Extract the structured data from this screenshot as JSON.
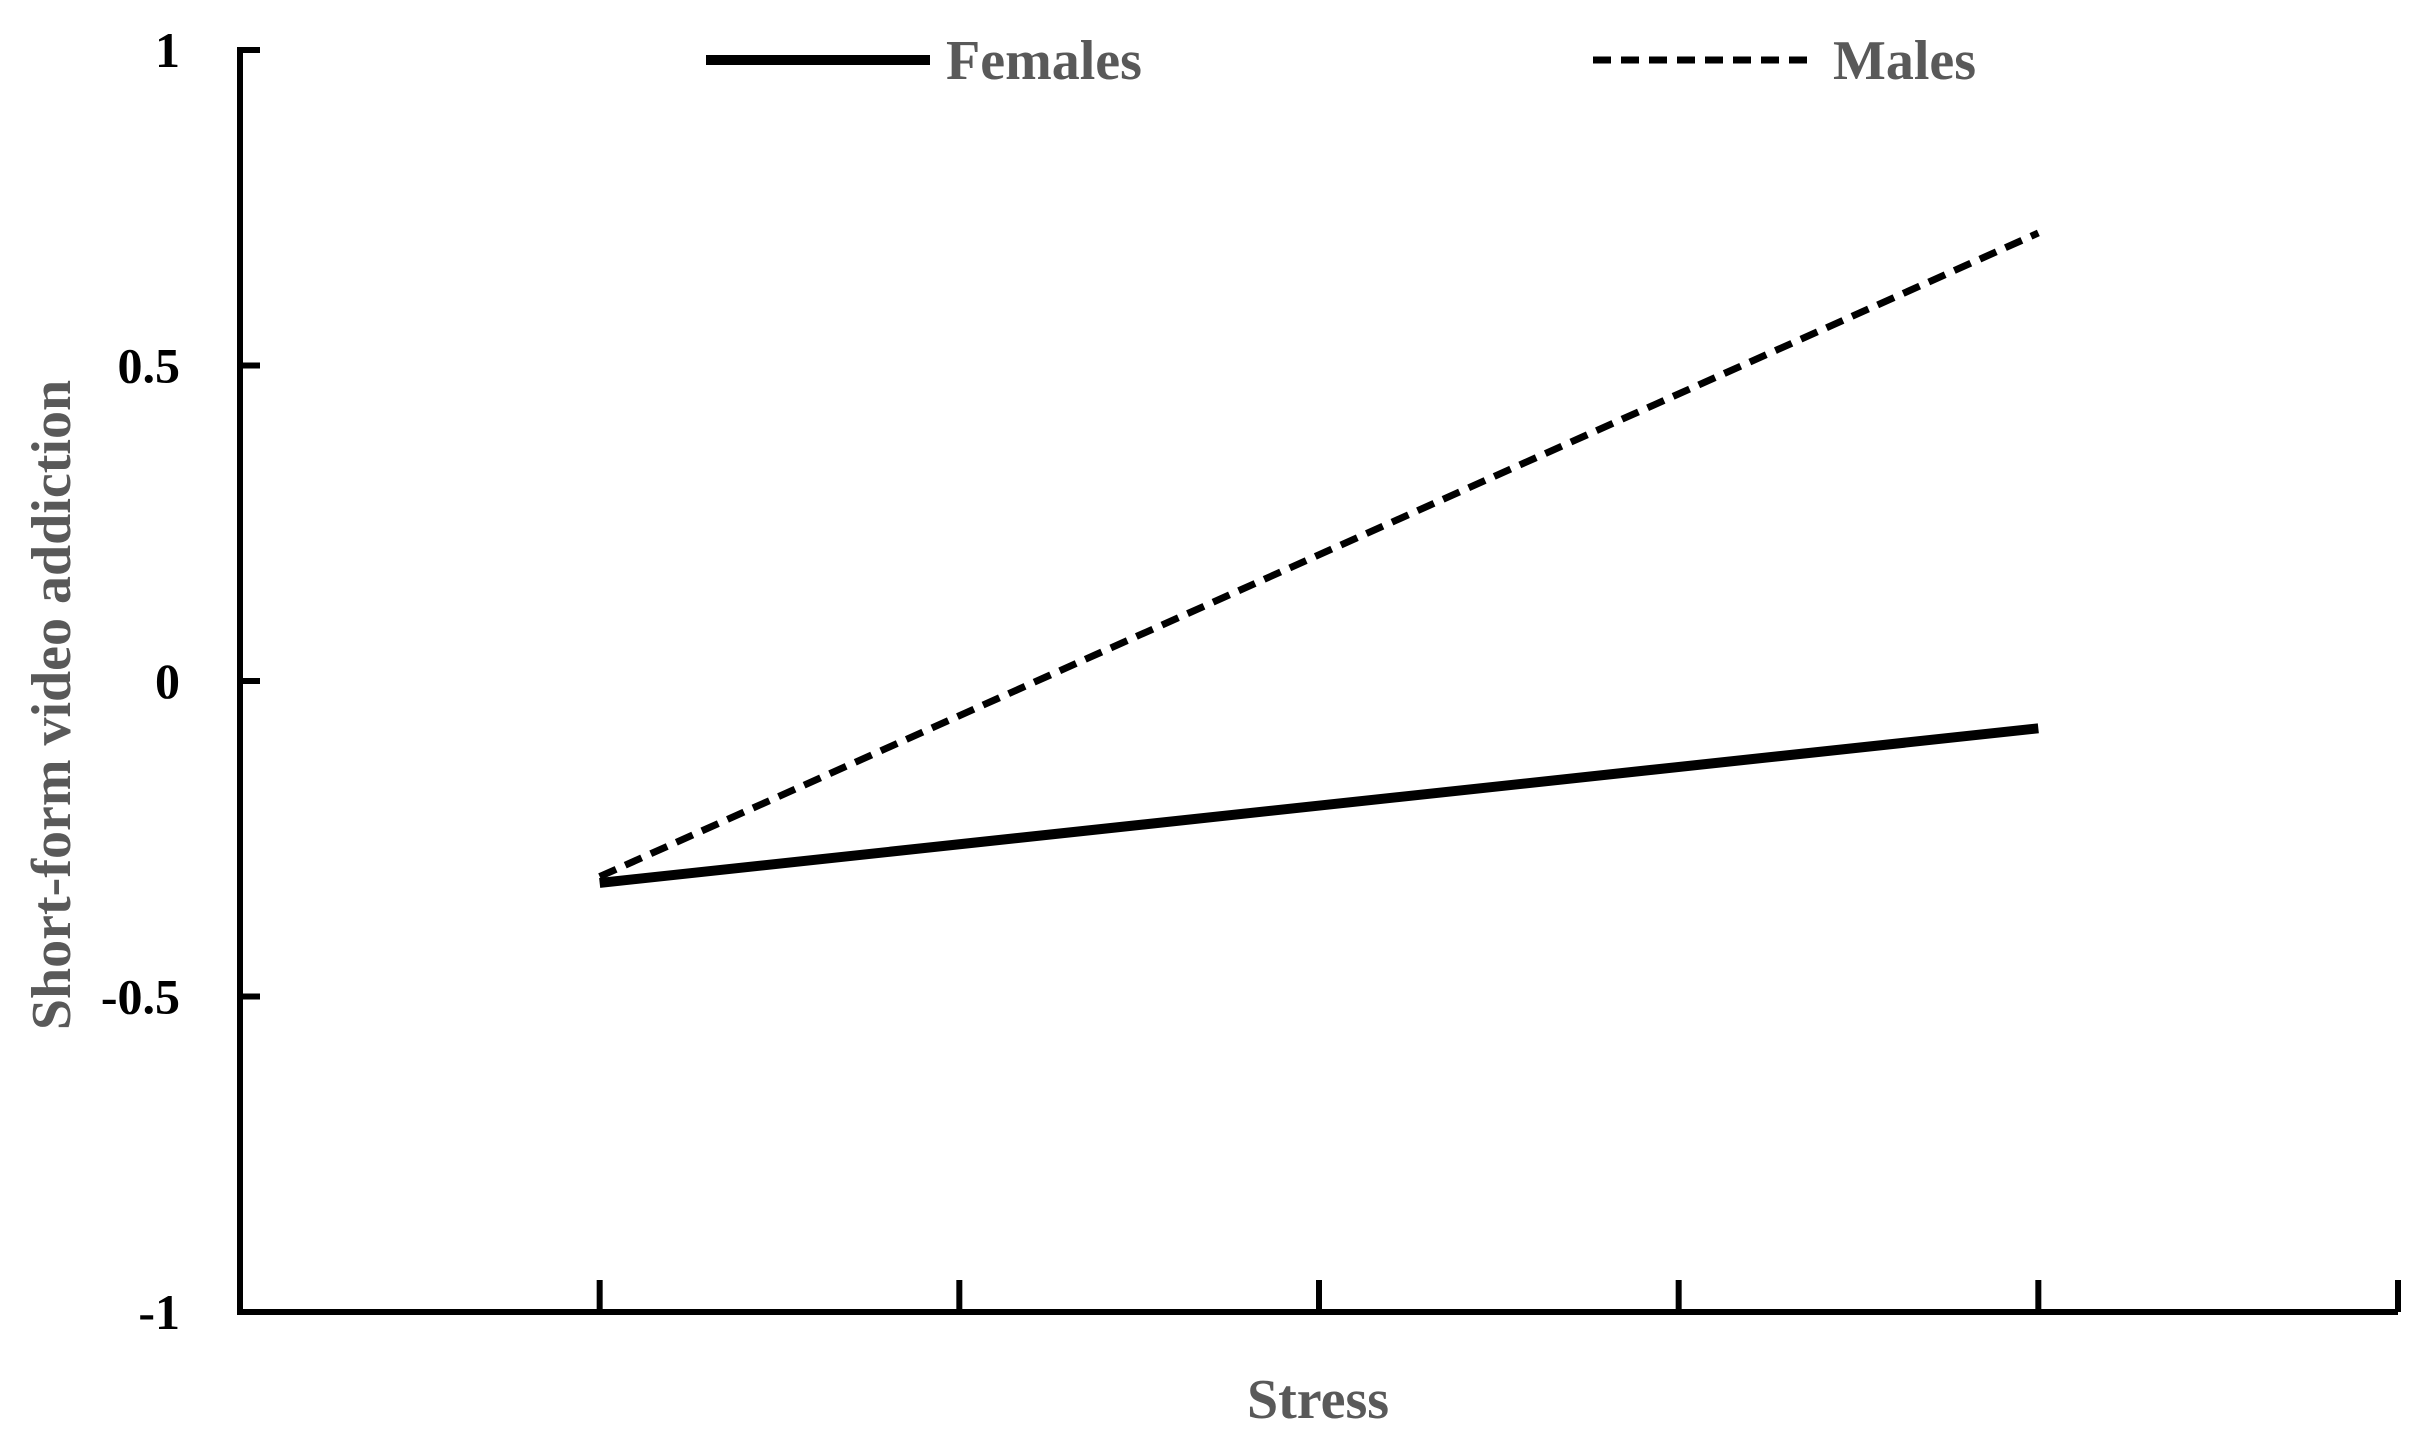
{
  "chart_data": {
    "type": "line",
    "title": "",
    "xlabel": "Stress",
    "ylabel": "Short-form video addiction",
    "ylim": [
      -1,
      1
    ],
    "yticks": [
      "1",
      "0.5",
      "0",
      "-0.5",
      "-1"
    ],
    "ytick_values": [
      1,
      0.5,
      0,
      -0.5,
      -1
    ],
    "xlim": [
      0,
      6
    ],
    "xtick_positions": [
      1,
      2,
      3,
      4,
      5
    ],
    "x": [
      1,
      5
    ],
    "grid": false,
    "legend_position": "top",
    "series": [
      {
        "name": "Females",
        "values": [
          -0.32,
          -0.075
        ],
        "style": "solid",
        "color": "#000000"
      },
      {
        "name": "Males",
        "values": [
          -0.31,
          0.71
        ],
        "style": "dashed",
        "color": "#000000"
      }
    ]
  }
}
